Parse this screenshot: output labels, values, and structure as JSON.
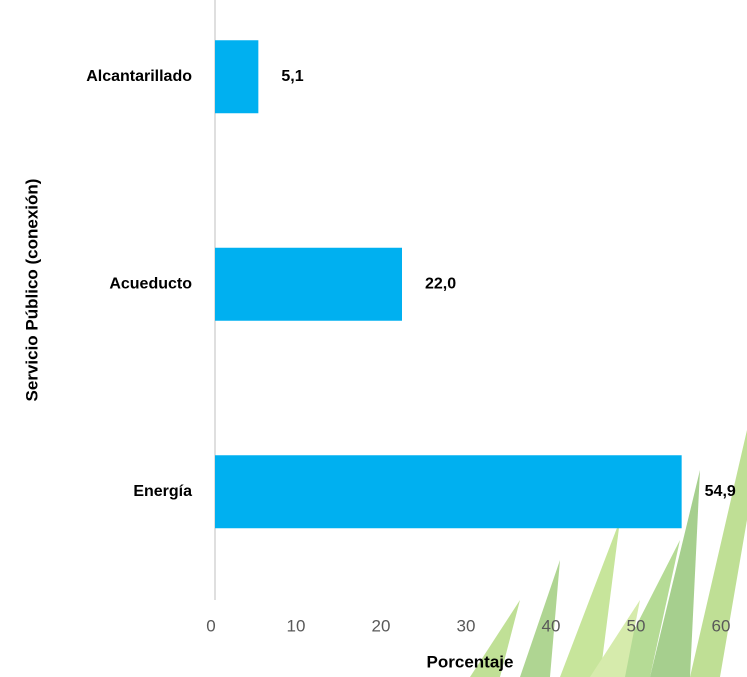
{
  "chart_data": {
    "type": "bar",
    "orientation": "horizontal",
    "categories": [
      "Alcantarillado",
      "Acueducto",
      "Energía"
    ],
    "values": [
      5.1,
      22.0,
      54.9
    ],
    "value_labels": [
      "5,1",
      "22,0",
      "54,9"
    ],
    "color": "#00b0f0",
    "xlim": [
      0,
      60
    ],
    "xticks": [
      0,
      10,
      20,
      30,
      40,
      50,
      60
    ],
    "xlabel": "Porcentaje",
    "ylabel": "Servicio Público (conexión)",
    "grid": false
  }
}
